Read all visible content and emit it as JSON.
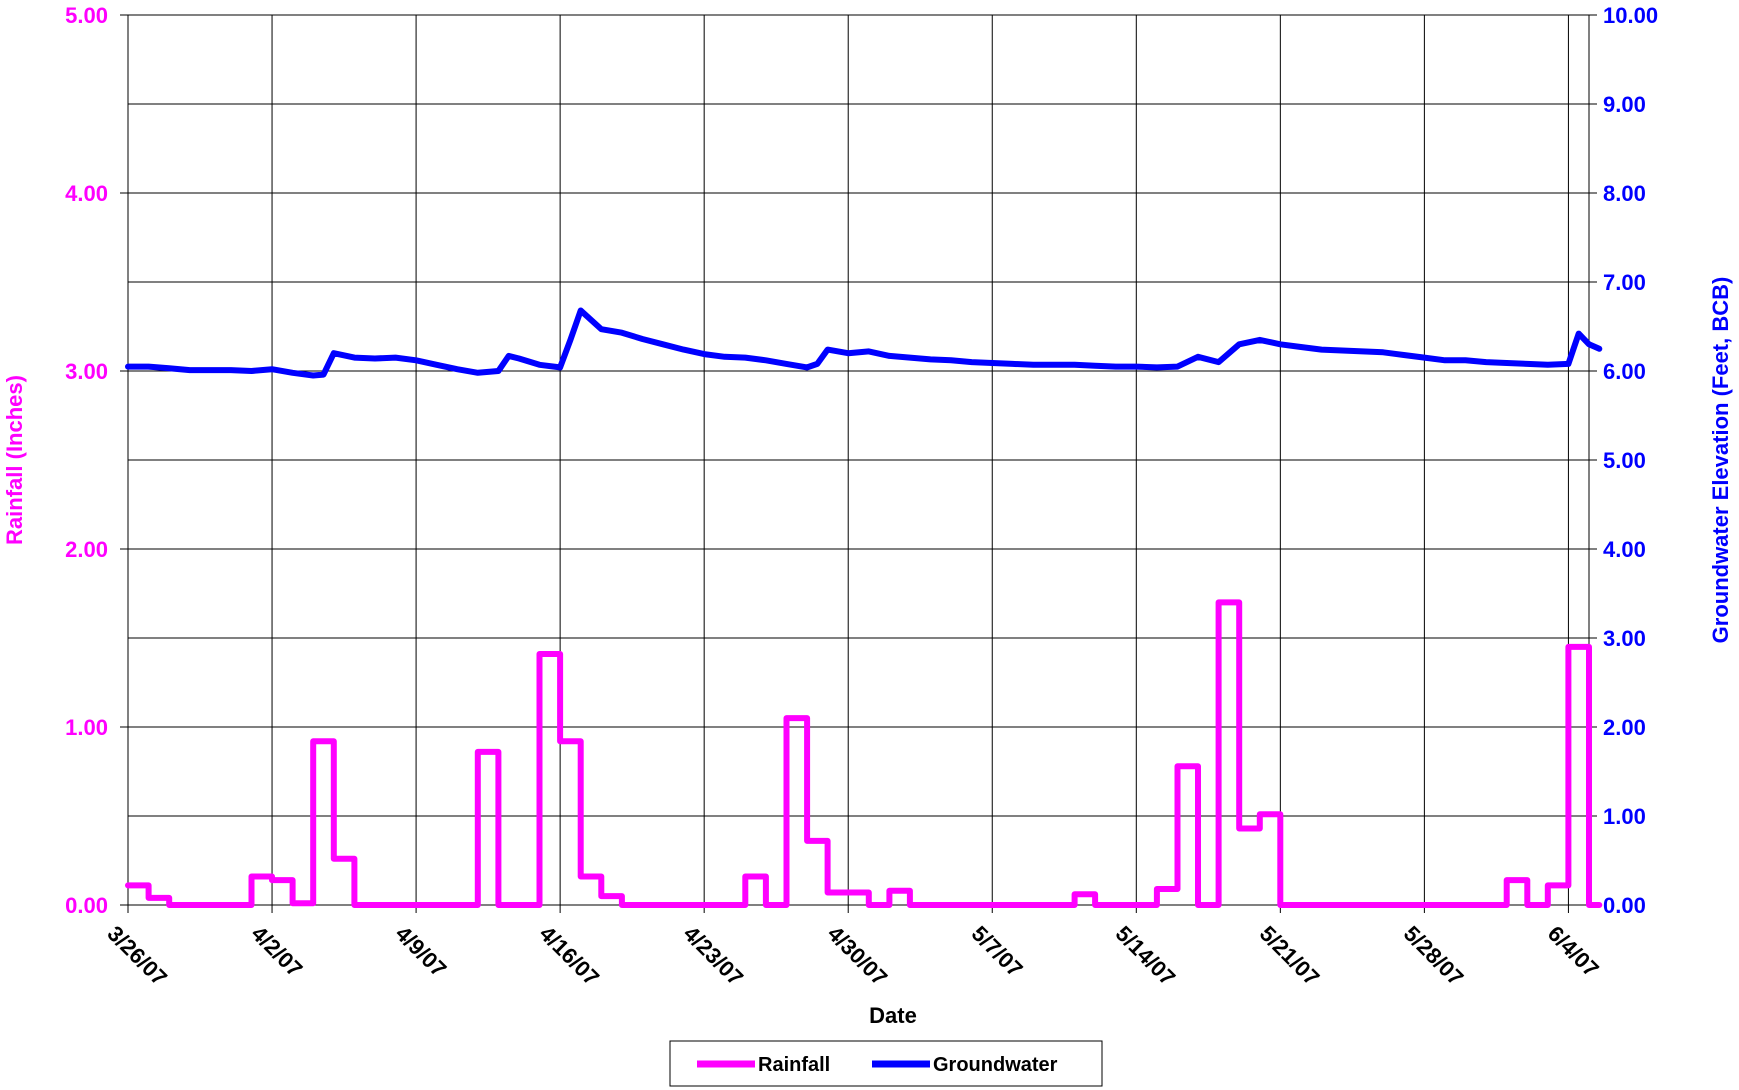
{
  "chart_data": {
    "type": "line",
    "title": "",
    "xlabel": "Date",
    "ylabel": "Rainfall (Inches)",
    "y2label": "Groundwater Elevation (Feet, BCB)",
    "x_range": [
      "3/26/07",
      "6/5/07"
    ],
    "ylim": [
      0,
      5
    ],
    "y2lim": [
      0,
      10
    ],
    "y_ticks": [
      "0.00",
      "1.00",
      "2.00",
      "3.00",
      "4.00",
      "5.00"
    ],
    "y2_ticks": [
      "0.00",
      "1.00",
      "2.00",
      "3.00",
      "4.00",
      "5.00",
      "6.00",
      "7.00",
      "8.00",
      "9.00",
      "10.00"
    ],
    "x_ticks": [
      "3/26/07",
      "4/2/07",
      "4/9/07",
      "4/16/07",
      "4/23/07",
      "4/30/07",
      "5/7/07",
      "5/14/07",
      "5/21/07",
      "5/28/07",
      "6/4/07"
    ],
    "grid": true,
    "legend": "bottom-center",
    "colors": {
      "rainfall": "#ff00ff",
      "groundwater": "#0000ff"
    },
    "series": [
      {
        "name": "Rainfall",
        "axis": "left",
        "style": "step",
        "color": "#ff00ff",
        "points": [
          [
            "3/26/07",
            0.11
          ],
          [
            "3/27/07",
            0.04
          ],
          [
            "3/28/07",
            0.0
          ],
          [
            "3/29/07",
            0.0
          ],
          [
            "3/30/07",
            0.0
          ],
          [
            "3/31/07",
            0.0
          ],
          [
            "4/1/07",
            0.16
          ],
          [
            "4/2/07",
            0.14
          ],
          [
            "4/3/07",
            0.01
          ],
          [
            "4/4/07",
            0.92
          ],
          [
            "4/5/07",
            0.26
          ],
          [
            "4/6/07",
            0.0
          ],
          [
            "4/7/07",
            0.0
          ],
          [
            "4/8/07",
            0.0
          ],
          [
            "4/9/07",
            0.0
          ],
          [
            "4/10/07",
            0.0
          ],
          [
            "4/11/07",
            0.0
          ],
          [
            "4/12/07",
            0.86
          ],
          [
            "4/13/07",
            0.0
          ],
          [
            "4/14/07",
            0.0
          ],
          [
            "4/15/07",
            1.41
          ],
          [
            "4/16/07",
            0.92
          ],
          [
            "4/17/07",
            0.16
          ],
          [
            "4/18/07",
            0.05
          ],
          [
            "4/19/07",
            0.0
          ],
          [
            "4/20/07",
            0.0
          ],
          [
            "4/21/07",
            0.0
          ],
          [
            "4/22/07",
            0.0
          ],
          [
            "4/23/07",
            0.0
          ],
          [
            "4/24/07",
            0.0
          ],
          [
            "4/25/07",
            0.16
          ],
          [
            "4/26/07",
            0.0
          ],
          [
            "4/27/07",
            1.05
          ],
          [
            "4/28/07",
            0.36
          ],
          [
            "4/29/07",
            0.07
          ],
          [
            "4/30/07",
            0.07
          ],
          [
            "5/1/07",
            0.0
          ],
          [
            "5/2/07",
            0.08
          ],
          [
            "5/3/07",
            0.0
          ],
          [
            "5/4/07",
            0.0
          ],
          [
            "5/5/07",
            0.0
          ],
          [
            "5/6/07",
            0.0
          ],
          [
            "5/7/07",
            0.0
          ],
          [
            "5/8/07",
            0.0
          ],
          [
            "5/9/07",
            0.0
          ],
          [
            "5/10/07",
            0.0
          ],
          [
            "5/11/07",
            0.06
          ],
          [
            "5/12/07",
            0.0
          ],
          [
            "5/13/07",
            0.0
          ],
          [
            "5/14/07",
            0.0
          ],
          [
            "5/15/07",
            0.09
          ],
          [
            "5/16/07",
            0.78
          ],
          [
            "5/17/07",
            0.0
          ],
          [
            "5/18/07",
            1.7
          ],
          [
            "5/19/07",
            0.43
          ],
          [
            "5/20/07",
            0.51
          ],
          [
            "5/21/07",
            0.0
          ],
          [
            "5/22/07",
            0.0
          ],
          [
            "5/23/07",
            0.0
          ],
          [
            "5/24/07",
            0.0
          ],
          [
            "5/25/07",
            0.0
          ],
          [
            "5/26/07",
            0.0
          ],
          [
            "5/27/07",
            0.0
          ],
          [
            "5/28/07",
            0.0
          ],
          [
            "5/29/07",
            0.0
          ],
          [
            "5/30/07",
            0.0
          ],
          [
            "5/31/07",
            0.0
          ],
          [
            "6/1/07",
            0.14
          ],
          [
            "6/2/07",
            0.0
          ],
          [
            "6/3/07",
            0.11
          ],
          [
            "6/4/07",
            1.45
          ],
          [
            "6/5/07",
            0.0
          ]
        ]
      },
      {
        "name": "Groundwater",
        "axis": "right",
        "style": "line",
        "color": "#0000ff",
        "points": [
          [
            "3/26/07",
            6.05
          ],
          [
            "3/27/07",
            6.05
          ],
          [
            "3/28/07",
            6.03
          ],
          [
            "3/29/07",
            6.01
          ],
          [
            "3/30/07",
            6.01
          ],
          [
            "3/31/07",
            6.01
          ],
          [
            "4/1/07",
            6.0
          ],
          [
            "4/2/07",
            6.02
          ],
          [
            "4/3/07",
            5.98
          ],
          [
            "4/4/07",
            5.95
          ],
          [
            "4/4/07 12:00",
            5.96
          ],
          [
            "4/5/07",
            6.2
          ],
          [
            "4/6/07",
            6.15
          ],
          [
            "4/7/07",
            6.14
          ],
          [
            "4/8/07",
            6.15
          ],
          [
            "4/9/07",
            6.12
          ],
          [
            "4/10/07",
            6.07
          ],
          [
            "4/11/07",
            6.02
          ],
          [
            "4/12/07",
            5.98
          ],
          [
            "4/13/07",
            6.0
          ],
          [
            "4/13/07 12:00",
            6.17
          ],
          [
            "4/14/07",
            6.14
          ],
          [
            "4/15/07",
            6.07
          ],
          [
            "4/16/07",
            6.04
          ],
          [
            "4/16/07 12:00",
            6.35
          ],
          [
            "4/17/07",
            6.68
          ],
          [
            "4/18/07",
            6.47
          ],
          [
            "4/19/07",
            6.43
          ],
          [
            "4/20/07",
            6.36
          ],
          [
            "4/21/07",
            6.3
          ],
          [
            "4/22/07",
            6.24
          ],
          [
            "4/23/07",
            6.19
          ],
          [
            "4/24/07",
            6.16
          ],
          [
            "4/25/07",
            6.15
          ],
          [
            "4/26/07",
            6.12
          ],
          [
            "4/27/07",
            6.08
          ],
          [
            "4/28/07",
            6.04
          ],
          [
            "4/28/07 12:00",
            6.08
          ],
          [
            "4/29/07",
            6.24
          ],
          [
            "4/30/07",
            6.2
          ],
          [
            "5/1/07",
            6.22
          ],
          [
            "5/2/07",
            6.17
          ],
          [
            "5/3/07",
            6.15
          ],
          [
            "5/4/07",
            6.13
          ],
          [
            "5/5/07",
            6.12
          ],
          [
            "5/6/07",
            6.1
          ],
          [
            "5/7/07",
            6.09
          ],
          [
            "5/8/07",
            6.08
          ],
          [
            "5/9/07",
            6.07
          ],
          [
            "5/10/07",
            6.07
          ],
          [
            "5/11/07",
            6.07
          ],
          [
            "5/12/07",
            6.06
          ],
          [
            "5/13/07",
            6.05
          ],
          [
            "5/14/07",
            6.05
          ],
          [
            "5/15/07",
            6.04
          ],
          [
            "5/16/07",
            6.05
          ],
          [
            "5/17/07",
            6.16
          ],
          [
            "5/18/07",
            6.1
          ],
          [
            "5/19/07",
            6.3
          ],
          [
            "5/20/07",
            6.35
          ],
          [
            "5/21/07",
            6.3
          ],
          [
            "5/22/07",
            6.27
          ],
          [
            "5/23/07",
            6.24
          ],
          [
            "5/24/07",
            6.23
          ],
          [
            "5/25/07",
            6.22
          ],
          [
            "5/26/07",
            6.21
          ],
          [
            "5/27/07",
            6.18
          ],
          [
            "5/28/07",
            6.15
          ],
          [
            "5/29/07",
            6.12
          ],
          [
            "5/30/07",
            6.12
          ],
          [
            "5/31/07",
            6.1
          ],
          [
            "6/1/07",
            6.09
          ],
          [
            "6/2/07",
            6.08
          ],
          [
            "6/3/07",
            6.07
          ],
          [
            "6/4/07",
            6.08
          ],
          [
            "6/4/07 12:00",
            6.42
          ],
          [
            "6/5/07",
            6.3
          ],
          [
            "6/5/07 12:00",
            6.25
          ]
        ]
      }
    ]
  }
}
